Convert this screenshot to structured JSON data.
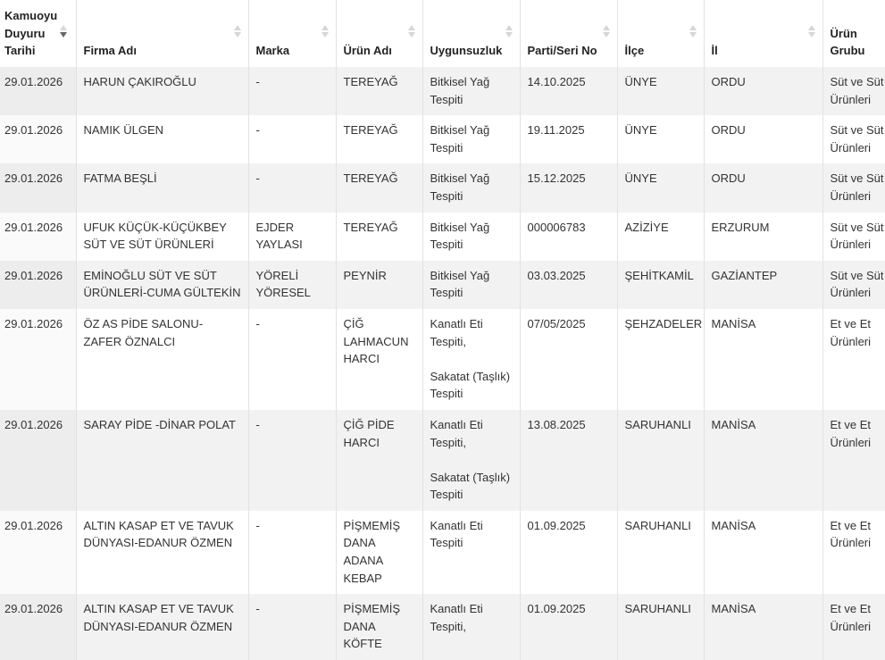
{
  "columns": [
    "Kamuoyu Duyuru Tarihi",
    "Firma Adı",
    "Marka",
    "Ürün Adı",
    "Uygunsuzluk",
    "Parti/Seri No",
    "İlçe",
    "İl",
    "Ürün Grubu"
  ],
  "sorted_column": 0,
  "sort_direction": "descending",
  "rows": [
    [
      "29.01.2026",
      "HARUN ÇAKIROĞLU",
      "-",
      "TEREYAĞ",
      "Bitkisel Yağ Tespiti",
      "14.10.2025",
      "ÜNYE",
      "ORDU",
      "Süt ve Süt Ürünleri"
    ],
    [
      "29.01.2026",
      "NAMIK ÜLGEN",
      "-",
      "TEREYAĞ",
      "Bitkisel Yağ Tespiti",
      "19.11.2025",
      "ÜNYE",
      "ORDU",
      "Süt ve Süt Ürünleri"
    ],
    [
      "29.01.2026",
      "FATMA BEŞLİ",
      "-",
      "TEREYAĞ",
      "Bitkisel Yağ Tespiti",
      "15.12.2025",
      "ÜNYE",
      "ORDU",
      "Süt ve Süt Ürünleri"
    ],
    [
      "29.01.2026",
      "UFUK KÜÇÜK-KÜÇÜKBEY SÜT VE SÜT ÜRÜNLERİ",
      "EJDER YAYLASI",
      "TEREYAĞ",
      "Bitkisel Yağ Tespiti",
      "000006783",
      "AZİZİYE",
      "ERZURUM",
      "Süt ve Süt Ürünleri"
    ],
    [
      "29.01.2026",
      "EMİNOĞLU SÜT VE SÜT ÜRÜNLERİ-CUMA GÜLTEKİN",
      "YÖRELİ YÖRESEL",
      "PEYNİR",
      "Bitkisel Yağ Tespiti",
      "03.03.2025",
      "ŞEHİTKAMİL",
      "GAZİANTEP",
      "Süt ve Süt Ürünleri"
    ],
    [
      "29.01.2026",
      "ÖZ AS PİDE SALONU-ZAFER ÖZNALCI",
      "-",
      "ÇİĞ LAHMACUN HARCI",
      "Kanatlı Eti Tespiti,|Sakatat (Taşlık) Tespiti",
      "07/05/2025",
      "ŞEHZADELER",
      "MANİSA",
      "Et ve Et Ürünleri"
    ],
    [
      "29.01.2026",
      "SARAY PİDE -DİNAR POLAT",
      "-",
      "ÇİĞ PİDE HARCI",
      "Kanatlı Eti Tespiti,|Sakatat (Taşlık) Tespiti",
      "13.08.2025",
      "SARUHANLI",
      "MANİSA",
      "Et ve Et Ürünleri"
    ],
    [
      "29.01.2026",
      "ALTIN KASAP ET VE TAVUK DÜNYASI-EDANUR ÖZMEN",
      "-",
      "PİŞMEMİŞ DANA ADANA KEBAP",
      "Kanatlı Eti Tespiti",
      "01.09.2025",
      "SARUHANLI",
      "MANİSA",
      "Et ve Et Ürünleri"
    ],
    [
      "29.01.2026",
      "ALTIN KASAP ET VE TAVUK DÜNYASI-EDANUR ÖZMEN",
      "-",
      "PİŞMEMİŞ DANA KÖFTE",
      "Kanatlı Eti Tespiti,",
      "01.09.2025",
      "SARUHANLI",
      "MANİSA",
      "Et ve Et Ürünleri"
    ]
  ]
}
